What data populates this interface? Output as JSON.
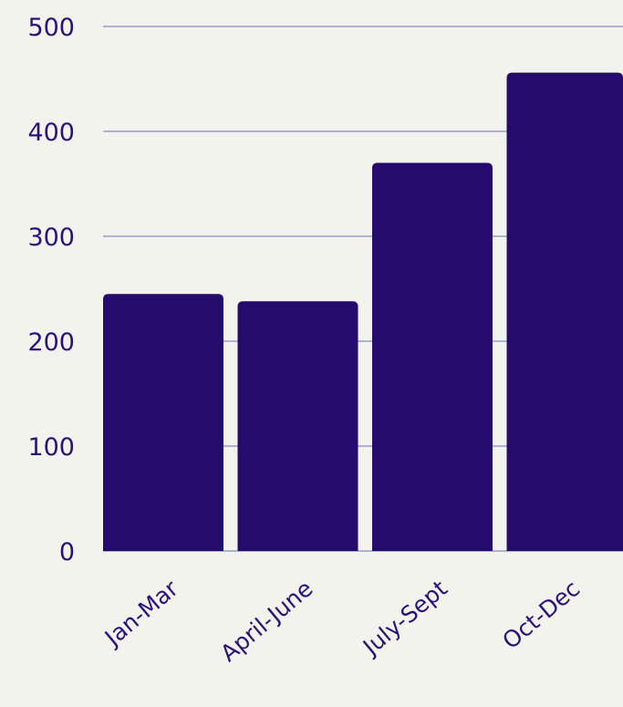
{
  "chart_data": {
    "type": "bar",
    "categories": [
      "Jan-Mar",
      "April-June",
      "July-Sept",
      "Oct-Dec"
    ],
    "values": [
      245,
      238,
      370,
      456
    ],
    "title": "",
    "xlabel": "",
    "ylabel": "",
    "ylim": [
      0,
      500
    ],
    "yticks": [
      "0",
      "100",
      "200",
      "300",
      "400",
      "500"
    ],
    "grid": true,
    "legend": "none",
    "bar_color": "#240b6c",
    "gridline_color": "#9a9ac6",
    "label_color": "#2a1378",
    "background_color": "#f3f3ee"
  }
}
